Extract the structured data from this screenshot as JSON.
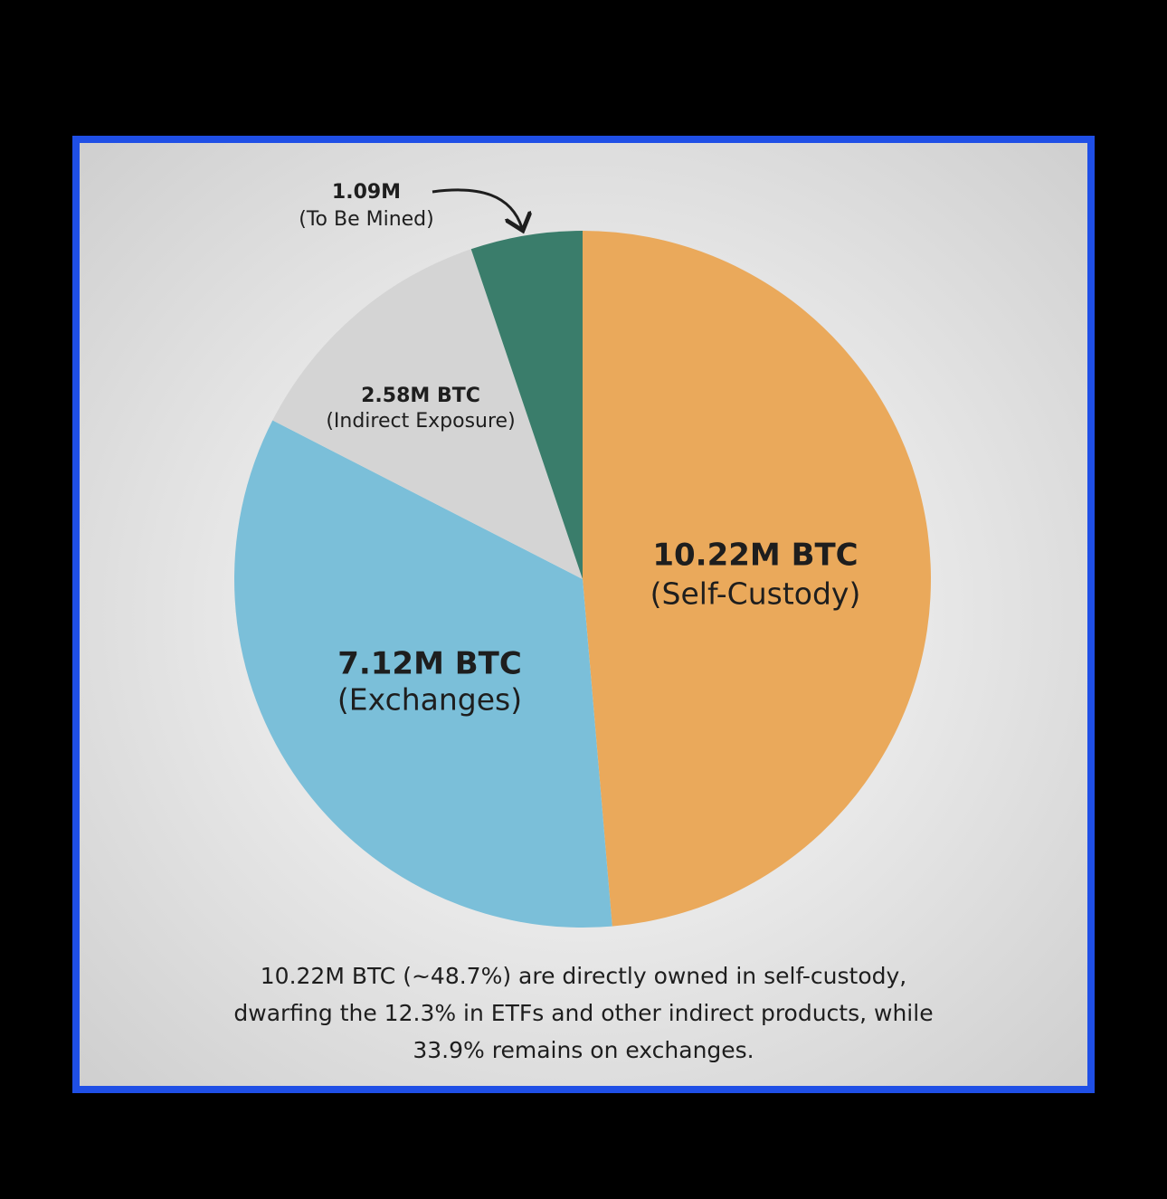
{
  "chart_data": {
    "type": "pie",
    "categories": [
      "(Self-Custody)",
      "(Exchanges)",
      "(Indirect Exposure)",
      "(To Be Mined)"
    ],
    "values": [
      10.22,
      7.12,
      2.58,
      1.09
    ],
    "value_labels": [
      "10.22M BTC",
      "7.12M BTC",
      "2.58M BTC",
      "1.09M"
    ],
    "colors": [
      "#eaa95b",
      "#7bbfd9",
      "#d4d4d4",
      "#3a7d6b"
    ],
    "caption": [
      "10.22M BTC (~48.7%) are directly owned in self-custody,",
      "dwarfing the 12.3% in ETFs and other indirect products, while",
      "33.9% remains on exchanges."
    ]
  }
}
